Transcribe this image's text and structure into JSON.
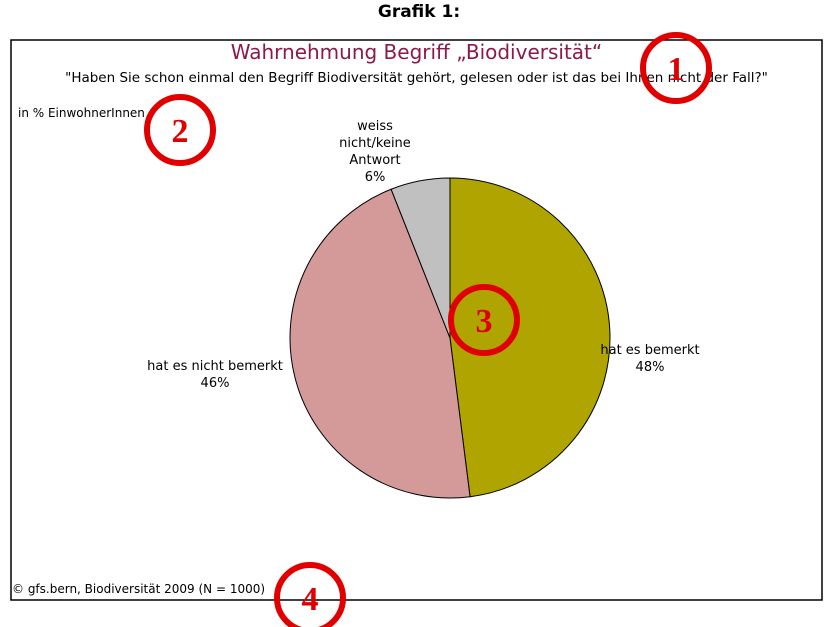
{
  "heading": "Grafik 1:",
  "chart_data": {
    "type": "pie",
    "title": "Wahrnehmung Begriff „Biodiversität“",
    "subtitle": "\"Haben Sie schon einmal den Begriff Biodiversität gehört, gelesen oder ist das bei Ihnen nicht der Fall?\"",
    "unit_note": "in % EinwohnerInnen",
    "source": "© gfs.bern, Biodiversität 2009 (N = 1000)",
    "categories": [
      "hat es bemerkt",
      "hat es nicht bemerkt",
      "weiss nicht/keine Antwort"
    ],
    "values": [
      48,
      46,
      6
    ],
    "value_labels": [
      "48%",
      "46%",
      "6%"
    ],
    "colors": [
      "#b0a400",
      "#d49a9a",
      "#c0c0c0"
    ]
  },
  "annotations": [
    "1",
    "2",
    "3",
    "4"
  ]
}
